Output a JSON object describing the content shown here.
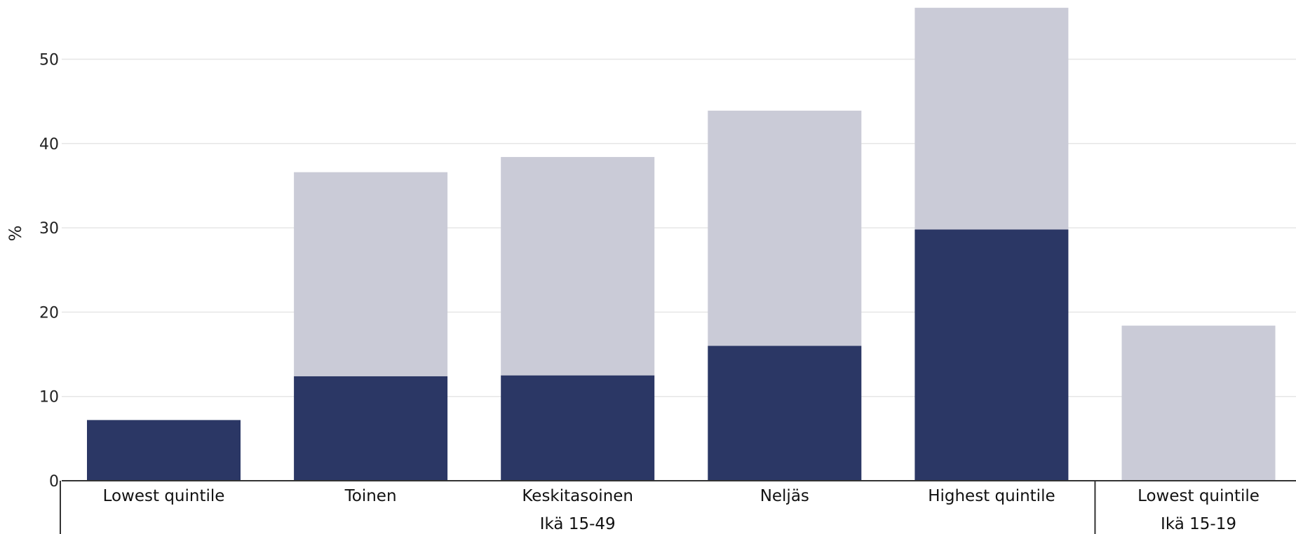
{
  "chart_data": {
    "type": "bar",
    "stacked": true,
    "ylabel": "%",
    "ylim": [
      0,
      56
    ],
    "yticks": [
      0,
      10,
      20,
      30,
      40,
      50
    ],
    "grid": true,
    "categories": [
      "Lowest quintile",
      "Toinen",
      "Keskitasoinen",
      "Neljäs",
      "Highest quintile",
      "Lowest quintile"
    ],
    "groups": [
      {
        "label": "Ikä 15-49",
        "start": 0,
        "end": 4
      },
      {
        "label": "Ikä 15-19",
        "start": 5,
        "end": 5
      }
    ],
    "series": [
      {
        "values": [
          7.2,
          12.4,
          12.5,
          16.0,
          29.8,
          0
        ],
        "color": "#2b3765"
      },
      {
        "values": [
          0,
          24.2,
          25.9,
          27.9,
          26.3,
          18.4
        ],
        "color": "#cacbd7"
      }
    ]
  }
}
